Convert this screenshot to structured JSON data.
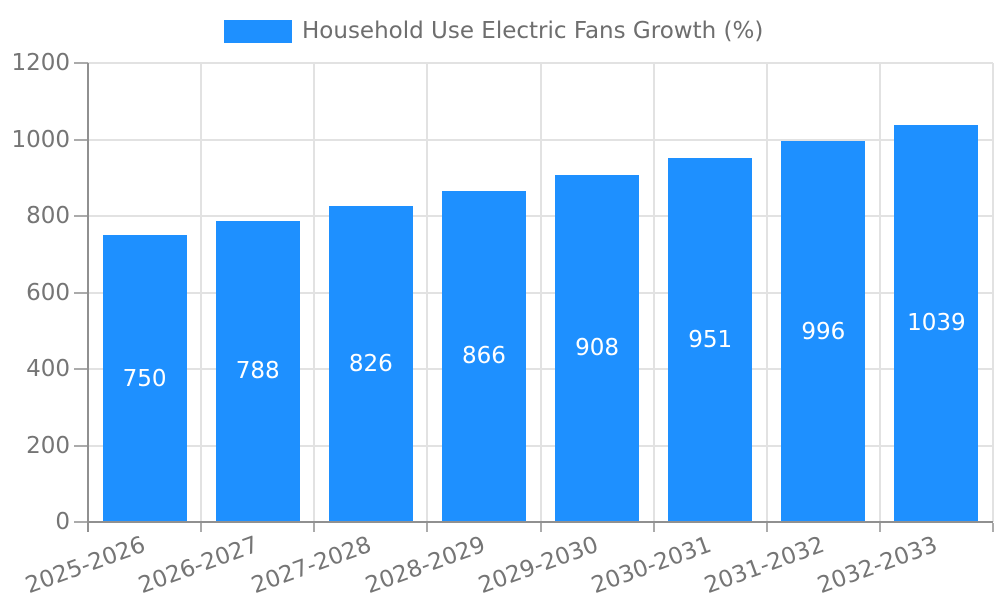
{
  "chart_data": {
    "type": "bar",
    "title": "",
    "categories": [
      "2025-2026",
      "2026-2027",
      "2027-2028",
      "2028-2029",
      "2029-2030",
      "2030-2031",
      "2031-2032",
      "2032-2033"
    ],
    "series": [
      {
        "name": "Household Use Electric Fans Growth (%)",
        "values": [
          750,
          788,
          826,
          866,
          908,
          951,
          996,
          1039
        ]
      }
    ],
    "xlabel": "",
    "ylabel": "",
    "ylim": [
      0,
      1200
    ],
    "yticks": [
      0,
      200,
      400,
      600,
      800,
      1000,
      1200
    ],
    "grid": true,
    "legend_position": "top-center",
    "value_labels_position": "center-of-bar",
    "x_tick_rotation_deg": -20,
    "colors": {
      "bar": "#1E90FF",
      "value_label": "#FFFFFF",
      "grid_line": "#E2E2E2",
      "axis_line": "#909090",
      "tick_mark": "#ABABAB",
      "tick_label": "#757575",
      "legend_text": "#6E6E6E",
      "background": "#FFFFFF"
    }
  }
}
